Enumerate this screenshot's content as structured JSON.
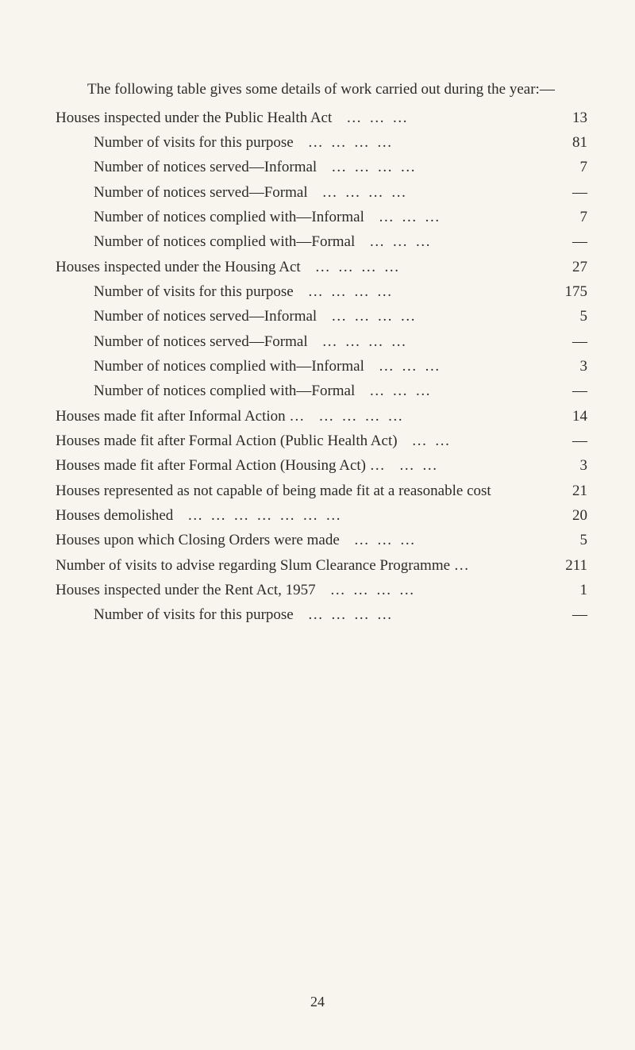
{
  "intro": "The following table gives some details of work carried out during the year:—",
  "rows": [
    {
      "label": "Houses inspected under the Public Health Act",
      "value": "13",
      "indent": false,
      "dots": 3
    },
    {
      "label": "Number of visits for this purpose",
      "value": "81",
      "indent": true,
      "dots": 4
    },
    {
      "label": "Number of notices served—Informal",
      "value": "7",
      "indent": true,
      "dots": 4
    },
    {
      "label": "Number of notices served—Formal",
      "value": "—",
      "indent": true,
      "dots": 4
    },
    {
      "label": "Number of notices complied with—Informal",
      "value": "7",
      "indent": true,
      "dots": 3
    },
    {
      "label": "Number of notices complied with—Formal",
      "value": "—",
      "indent": true,
      "dots": 3
    },
    {
      "label": "Houses inspected under the Housing Act",
      "value": "27",
      "indent": false,
      "dots": 4
    },
    {
      "label": "Number of visits for this purpose",
      "value": "175",
      "indent": true,
      "dots": 4
    },
    {
      "label": "Number of notices served—Informal",
      "value": "5",
      "indent": true,
      "dots": 4
    },
    {
      "label": "Number of notices served—Formal",
      "value": "—",
      "indent": true,
      "dots": 4
    },
    {
      "label": "Number of notices complied with—Informal",
      "value": "3",
      "indent": true,
      "dots": 3
    },
    {
      "label": "Number of notices complied with—Formal",
      "value": "—",
      "indent": true,
      "dots": 3
    },
    {
      "label": "Houses made fit after Informal Action …",
      "value": "14",
      "indent": false,
      "dots": 4
    },
    {
      "label": "Houses made fit after Formal Action (Public Health Act)",
      "value": "—",
      "indent": false,
      "dots": 2
    },
    {
      "label": "Houses made fit after Formal Action (Housing Act) …",
      "value": "3",
      "indent": false,
      "dots": 2
    },
    {
      "label": "Houses represented as not capable of being made fit at a reasonable cost",
      "value": "21",
      "indent": false,
      "dots": 0
    },
    {
      "label": "Houses demolished",
      "value": "20",
      "indent": false,
      "dots": 7
    },
    {
      "label": "Houses upon which Closing Orders were made",
      "value": "5",
      "indent": false,
      "dots": 3
    },
    {
      "label": "Number of visits to advise regarding Slum Clearance Programme  …",
      "value": "211",
      "indent": false,
      "dots": 0
    },
    {
      "label": "Houses inspected under the Rent Act, 1957",
      "value": "1",
      "indent": false,
      "dots": 4
    },
    {
      "label": "Number of visits for this purpose",
      "value": "—",
      "indent": true,
      "dots": 4
    }
  ],
  "page_number": "24"
}
